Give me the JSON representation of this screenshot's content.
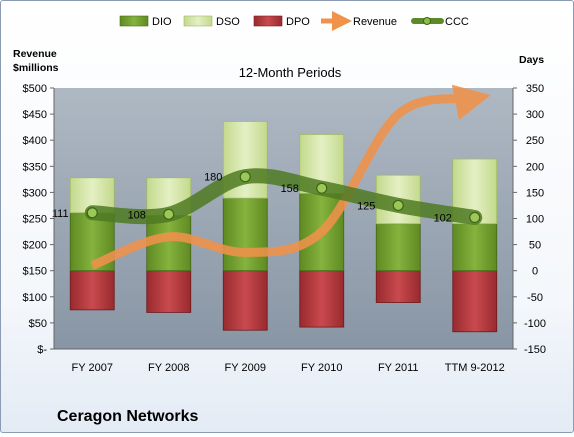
{
  "chart_data": {
    "type": "bar",
    "title": "12-Month Periods",
    "company": "Ceragon Networks",
    "categories": [
      "FY 2007",
      "FY 2008",
      "FY 2009",
      "FY 2010",
      "FY 2011",
      "TTM 9-2012"
    ],
    "left_axis": {
      "label_line1": "Revenue",
      "label_line2": "$millions",
      "range": [
        0,
        500
      ],
      "ticks": [
        {
          "value": 0,
          "label": "$-"
        },
        {
          "value": 50,
          "label": "$50"
        },
        {
          "value": 100,
          "label": "$100"
        },
        {
          "value": 150,
          "label": "$150"
        },
        {
          "value": 200,
          "label": "$200"
        },
        {
          "value": 250,
          "label": "$250"
        },
        {
          "value": 300,
          "label": "$300"
        },
        {
          "value": 350,
          "label": "$350"
        },
        {
          "value": 400,
          "label": "$400"
        },
        {
          "value": 450,
          "label": "$450"
        },
        {
          "value": 500,
          "label": "$500"
        }
      ]
    },
    "right_axis": {
      "label": "Days",
      "range": [
        -150,
        350
      ],
      "ticks": [
        {
          "value": -150,
          "label": "-150"
        },
        {
          "value": -100,
          "label": "-100"
        },
        {
          "value": -50,
          "label": "-50"
        },
        {
          "value": 0,
          "label": "0"
        },
        {
          "value": 50,
          "label": "50"
        },
        {
          "value": 100,
          "label": "100"
        },
        {
          "value": 150,
          "label": "150"
        },
        {
          "value": 200,
          "label": "200"
        },
        {
          "value": 250,
          "label": "250"
        },
        {
          "value": 300,
          "label": "300"
        },
        {
          "value": 350,
          "label": "350"
        }
      ]
    },
    "series": [
      {
        "name": "DIO",
        "axis": "right",
        "color": "#6f9a2e",
        "values": [
          111,
          106,
          139,
          148,
          90,
          90
        ]
      },
      {
        "name": "DSO",
        "axis": "right",
        "color": "#cfe3a0",
        "values": [
          67,
          72,
          147,
          113,
          93,
          124
        ]
      },
      {
        "name": "DPO",
        "axis": "right",
        "color": "#b2383c",
        "values": [
          -75,
          -80,
          -114,
          -108,
          -61,
          -117
        ]
      },
      {
        "name": "Revenue",
        "axis": "left",
        "color": "#f0924a",
        "values": [
          160,
          215,
          185,
          225,
          450,
          480
        ]
      },
      {
        "name": "CCC",
        "axis": "right",
        "color": "#5c8a2a",
        "values": [
          111,
          108,
          180,
          158,
          125,
          102
        ]
      }
    ],
    "ccc_labels": [
      "111",
      "108",
      "180",
      "158",
      "125",
      "102"
    ],
    "legend_position": "top",
    "grid": false,
    "plot_background": "#8a98a8"
  }
}
